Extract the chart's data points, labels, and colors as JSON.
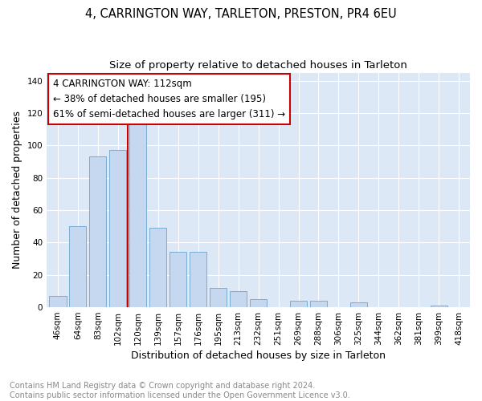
{
  "title": "4, CARRINGTON WAY, TARLETON, PRESTON, PR4 6EU",
  "subtitle": "Size of property relative to detached houses in Tarleton",
  "xlabel": "Distribution of detached houses by size in Tarleton",
  "ylabel": "Number of detached properties",
  "categories": [
    "46sqm",
    "64sqm",
    "83sqm",
    "102sqm",
    "120sqm",
    "139sqm",
    "157sqm",
    "176sqm",
    "195sqm",
    "213sqm",
    "232sqm",
    "251sqm",
    "269sqm",
    "288sqm",
    "306sqm",
    "325sqm",
    "344sqm",
    "362sqm",
    "381sqm",
    "399sqm",
    "418sqm"
  ],
  "values": [
    7,
    50,
    93,
    97,
    113,
    49,
    34,
    34,
    12,
    10,
    5,
    0,
    4,
    4,
    0,
    3,
    0,
    0,
    0,
    1,
    0
  ],
  "bar_color": "#c5d8ef",
  "bar_edge_color": "#7aadd4",
  "vline_x": 3.5,
  "vline_color": "#cc0000",
  "annotation_text": "4 CARRINGTON WAY: 112sqm\n← 38% of detached houses are smaller (195)\n61% of semi-detached houses are larger (311) →",
  "annotation_box_color": "#ffffff",
  "annotation_box_edge_color": "#cc0000",
  "ylim": [
    0,
    145
  ],
  "yticks": [
    0,
    20,
    40,
    60,
    80,
    100,
    120,
    140
  ],
  "fig_bg_color": "#ffffff",
  "plot_bg_color": "#dce8f5",
  "grid_color": "#ffffff",
  "title_fontsize": 10.5,
  "subtitle_fontsize": 9.5,
  "axis_label_fontsize": 9,
  "tick_fontsize": 7.5,
  "annotation_fontsize": 8.5,
  "footnote_fontsize": 7,
  "footnote_color": "#888888",
  "footnote": "Contains HM Land Registry data © Crown copyright and database right 2024.\nContains public sector information licensed under the Open Government Licence v3.0."
}
